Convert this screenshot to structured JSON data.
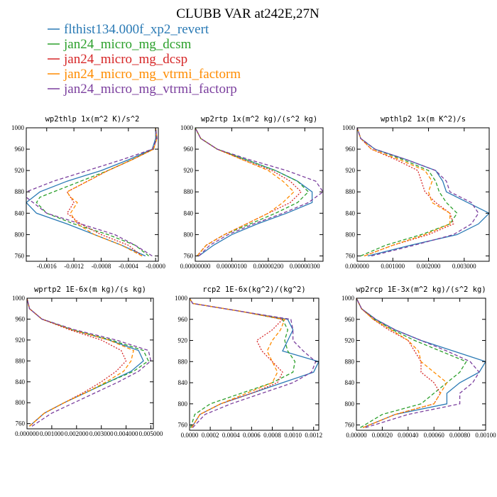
{
  "figure": {
    "title": "CLUBB VAR at242E,27N",
    "legend": [
      {
        "label": "flthist134.000f_xp2_revert",
        "color": "#2a7ab5"
      },
      {
        "label": "jan24_micro_mg_dcsm",
        "color": "#2ca02c"
      },
      {
        "label": "jan24_micro_mg_dcsp",
        "color": "#d62728"
      },
      {
        "label": "jan24_micro_mg_vtrmi_factorm",
        "color": "#ff8c00"
      },
      {
        "label": "jan24_micro_mg_vtrmi_factorp",
        "color": "#7b3f9e"
      }
    ]
  },
  "chart_data": [
    {
      "type": "line",
      "title": "wp2thlp  1x(m^2 K)/s^2",
      "xlim": [
        -0.0019,
        4e-05
      ],
      "ylim": [
        1000,
        750
      ],
      "xticks": [
        -0.0016,
        -0.0012,
        -0.0008,
        -0.0004,
        0.0
      ],
      "xtick_labels": [
        "-0.0016",
        "-0.0012",
        "-0.0008",
        "-0.0004",
        "-0.0000"
      ],
      "yticks": [
        760,
        800,
        840,
        880,
        920,
        960,
        1000
      ],
      "ytick_labels": [
        "760",
        "800",
        "840",
        "880",
        "920",
        "960",
        "1000"
      ],
      "y": [
        760,
        780,
        800,
        820,
        840,
        860,
        870,
        880,
        900,
        920,
        940,
        960,
        980,
        1000
      ],
      "series": [
        {
          "name": "flthist134.000f_xp2_revert",
          "color": "#2a7ab5",
          "dash": "solid",
          "values": [
            -0.00015,
            -0.0005,
            -0.0009,
            -0.0013,
            -0.00175,
            -0.0019,
            -0.0018,
            -0.0017,
            -0.0013,
            -0.0008,
            -0.0004,
            -5e-05,
            0.0,
            0.0
          ]
        },
        {
          "name": "jan24_micro_mg_dcsm",
          "color": "#2ca02c",
          "dash": "dash",
          "values": [
            -0.0001,
            -0.0003,
            -0.0007,
            -0.0012,
            -0.0016,
            -0.00175,
            -0.0017,
            -0.0015,
            -0.0011,
            -0.0007,
            -0.00035,
            -3e-05,
            1e-05,
            0.0
          ]
        },
        {
          "name": "jan24_micro_mg_dcsp",
          "color": "#d62728",
          "dash": "dot",
          "values": [
            -0.0002,
            -0.0004,
            -0.0008,
            -0.0011,
            -0.0013,
            -0.0012,
            -0.00125,
            -0.0013,
            -0.001,
            -0.0007,
            -0.00035,
            -3e-05,
            1e-05,
            0.0
          ]
        },
        {
          "name": "jan24_micro_mg_vtrmi_factorm",
          "color": "#ff8c00",
          "dash": "dash",
          "values": [
            -0.0002,
            -0.0005,
            -0.0009,
            -0.00115,
            -0.00125,
            -0.00115,
            -0.00125,
            -0.0013,
            -0.001,
            -0.0007,
            -0.00035,
            -3e-05,
            2e-05,
            0.0
          ]
        },
        {
          "name": "jan24_micro_mg_vtrmi_factorp",
          "color": "#7b3f9e",
          "dash": "dash",
          "values": [
            -5e-05,
            -0.0003,
            -0.0006,
            -0.0011,
            -0.0016,
            -0.0018,
            -0.0019,
            -0.0019,
            -0.0015,
            -0.001,
            -0.0005,
            -5e-05,
            2e-05,
            0.0
          ]
        }
      ]
    },
    {
      "type": "line",
      "title": "wp2rtp  1x(m^2 kg)/(s^2 kg)",
      "xlim": [
        0.0,
        3.5e-06
      ],
      "ylim": [
        1000,
        750
      ],
      "xticks": [
        0.0,
        1e-06,
        2e-06,
        3e-06
      ],
      "xtick_labels": [
        "0.00000000",
        "0.00000100",
        "0.00000200",
        "0.00000300"
      ],
      "yticks": [
        760,
        800,
        840,
        880,
        920,
        960,
        1000
      ],
      "ytick_labels": [
        "760",
        "800",
        "840",
        "880",
        "920",
        "960",
        "1000"
      ],
      "y": [
        760,
        780,
        800,
        820,
        840,
        860,
        880,
        900,
        920,
        940,
        960,
        980,
        1000
      ],
      "series": [
        {
          "name": "flthist134.000f_xp2_revert",
          "color": "#2a7ab5",
          "dash": "solid",
          "values": [
            1e-07,
            5e-07,
            1e-06,
            1.7e-06,
            2.5e-06,
            3.2e-06,
            3.2e-06,
            2.8e-06,
            2.2e-06,
            1.4e-06,
            6e-07,
            1.5e-07,
            0.0
          ]
        },
        {
          "name": "jan24_micro_mg_dcsm",
          "color": "#2ca02c",
          "dash": "dash",
          "values": [
            5e-08,
            3e-07,
            8e-07,
            1.5e-06,
            2.2e-06,
            2.8e-06,
            3.1e-06,
            2.8e-06,
            2.2e-06,
            1.4e-06,
            6e-07,
            1.5e-07,
            0.0
          ]
        },
        {
          "name": "jan24_micro_mg_dcsp",
          "color": "#d62728",
          "dash": "dot",
          "values": [
            5e-08,
            3e-07,
            8e-07,
            1.4e-06,
            2e-06,
            2.6e-06,
            2.9e-06,
            2.6e-06,
            2.1e-06,
            1.3e-06,
            6e-07,
            1.5e-07,
            0.0
          ]
        },
        {
          "name": "jan24_micro_mg_vtrmi_factorm",
          "color": "#ff8c00",
          "dash": "dash",
          "values": [
            5e-08,
            3e-07,
            8e-07,
            1.4e-06,
            2e-06,
            2.4e-06,
            2.7e-06,
            2.4e-06,
            2e-06,
            1.3e-06,
            6e-07,
            1.5e-07,
            0.0
          ]
        },
        {
          "name": "jan24_micro_mg_vtrmi_factorp",
          "color": "#7b3f9e",
          "dash": "dash",
          "values": [
            1e-07,
            4e-07,
            9e-07,
            1.6e-06,
            2.4e-06,
            3.1e-06,
            3.5e-06,
            3.3e-06,
            2.5e-06,
            1.5e-06,
            6e-07,
            1.5e-07,
            0.0
          ]
        }
      ]
    },
    {
      "type": "line",
      "title": "wpthlp2  1x(m K^2)/s",
      "xlim": [
        0.0,
        0.0037
      ],
      "ylim": [
        1000,
        750
      ],
      "xticks": [
        0.0,
        0.001,
        0.002,
        0.003
      ],
      "xtick_labels": [
        "0.000000",
        "0.001000",
        "0.002000",
        "0.003000"
      ],
      "yticks": [
        760,
        800,
        840,
        880,
        920,
        960,
        1000
      ],
      "ytick_labels": [
        "760",
        "800",
        "840",
        "880",
        "920",
        "960",
        "1000"
      ],
      "y": [
        760,
        780,
        800,
        820,
        840,
        860,
        880,
        900,
        920,
        940,
        960,
        980,
        1000
      ],
      "series": [
        {
          "name": "flthist134.000f_xp2_revert",
          "color": "#2a7ab5",
          "dash": "solid",
          "values": [
            0.0003,
            0.0015,
            0.0028,
            0.0034,
            0.0037,
            0.0031,
            0.0025,
            0.0024,
            0.0022,
            0.0014,
            0.0005,
            0.0001,
            0.0
          ]
        },
        {
          "name": "jan24_micro_mg_dcsm",
          "color": "#2ca02c",
          "dash": "dash",
          "values": [
            0.0001,
            0.0008,
            0.0018,
            0.0026,
            0.0028,
            0.0025,
            0.0023,
            0.0022,
            0.002,
            0.0013,
            0.0005,
            0.0001,
            0.0
          ]
        },
        {
          "name": "jan24_micro_mg_dcsp",
          "color": "#d62728",
          "dash": "dot",
          "values": [
            0.0002,
            0.001,
            0.002,
            0.0027,
            0.0026,
            0.0022,
            0.0019,
            0.0018,
            0.0017,
            0.0011,
            0.0004,
            0.0001,
            0.0
          ]
        },
        {
          "name": "jan24_micro_mg_vtrmi_factorm",
          "color": "#ff8c00",
          "dash": "dash",
          "values": [
            0.0002,
            0.001,
            0.0019,
            0.0026,
            0.0026,
            0.0021,
            0.002,
            0.0021,
            0.0019,
            0.0012,
            0.0004,
            0.0001,
            0.0
          ]
        },
        {
          "name": "jan24_micro_mg_vtrmi_factorp",
          "color": "#7b3f9e",
          "dash": "dash",
          "values": [
            0.0004,
            0.0016,
            0.0027,
            0.0032,
            0.0034,
            0.0032,
            0.0026,
            0.0025,
            0.0022,
            0.0014,
            0.0005,
            0.0001,
            0.0
          ]
        }
      ]
    },
    {
      "type": "line",
      "title": "wprtp2  1E-6x(m kg)/(s kg)",
      "xlim": [
        0.0,
        0.0051
      ],
      "ylim": [
        1000,
        750
      ],
      "xticks": [
        0.0,
        0.001,
        0.002,
        0.003,
        0.004,
        0.005
      ],
      "xtick_labels": [
        "0.000000",
        "0.001000",
        "0.002000",
        "0.003000",
        "0.004000",
        "0.005000"
      ],
      "yticks": [
        760,
        800,
        840,
        880,
        920,
        960,
        1000
      ],
      "ytick_labels": [
        "760",
        "800",
        "840",
        "880",
        "920",
        "960",
        "1000"
      ],
      "y": [
        755,
        780,
        800,
        820,
        840,
        860,
        880,
        900,
        920,
        940,
        960,
        980,
        1000
      ],
      "series": [
        {
          "name": "flthist134.000f_xp2_revert",
          "color": "#2a7ab5",
          "dash": "solid",
          "values": [
            0.0001,
            0.0007,
            0.0015,
            0.0024,
            0.0033,
            0.0042,
            0.0047,
            0.0045,
            0.0033,
            0.0018,
            0.0006,
            0.0001,
            0.0
          ]
        },
        {
          "name": "jan24_micro_mg_dcsm",
          "color": "#2ca02c",
          "dash": "dash",
          "values": [
            0.0001,
            0.0007,
            0.0015,
            0.0024,
            0.0033,
            0.0043,
            0.0049,
            0.0047,
            0.0034,
            0.0018,
            0.0006,
            0.0001,
            0.0
          ]
        },
        {
          "name": "jan24_micro_mg_dcsp",
          "color": "#d62728",
          "dash": "dot",
          "values": [
            0.0001,
            0.0007,
            0.0015,
            0.0023,
            0.003,
            0.0036,
            0.004,
            0.0038,
            0.003,
            0.0017,
            0.0006,
            0.0001,
            0.0
          ]
        },
        {
          "name": "jan24_micro_mg_vtrmi_factorm",
          "color": "#ff8c00",
          "dash": "dash",
          "values": [
            0.0001,
            0.0007,
            0.0015,
            0.0024,
            0.0032,
            0.0039,
            0.0042,
            0.0043,
            0.0033,
            0.0018,
            0.0006,
            0.0001,
            0.0
          ]
        },
        {
          "name": "jan24_micro_mg_vtrmi_factorp",
          "color": "#7b3f9e",
          "dash": "dash",
          "values": [
            0.0002,
            0.001,
            0.0019,
            0.0028,
            0.0037,
            0.0045,
            0.005,
            0.0049,
            0.0036,
            0.0019,
            0.0006,
            0.0001,
            0.0
          ]
        }
      ]
    },
    {
      "type": "line",
      "title": "rcp2  1E-6x(kg^2)/(kg^2)",
      "xlim": [
        0.0,
        0.00125
      ],
      "ylim": [
        1000,
        750
      ],
      "xticks": [
        0.0,
        0.0002,
        0.0004,
        0.0006,
        0.0008,
        0.001,
        0.0012
      ],
      "xtick_labels": [
        "0.0000",
        "0.0002",
        "0.0004",
        "0.0006",
        "0.0008",
        "0.0010",
        "0.0012"
      ],
      "yticks": [
        760,
        800,
        840,
        880,
        920,
        960,
        1000
      ],
      "ytick_labels": [
        "760",
        "800",
        "840",
        "880",
        "920",
        "960",
        "1000"
      ],
      "y": [
        755,
        780,
        800,
        820,
        840,
        860,
        880,
        900,
        920,
        940,
        960,
        975,
        990,
        1000
      ],
      "series": [
        {
          "name": "flthist134.000f_xp2_revert",
          "color": "#2a7ab5",
          "dash": "solid",
          "values": [
            2e-05,
            0.0001,
            0.0003,
            0.0006,
            0.0009,
            0.0012,
            0.00125,
            0.0009,
            0.00095,
            0.001,
            0.00095,
            0.0005,
            3e-05,
            0.0
          ]
        },
        {
          "name": "jan24_micro_mg_dcsm",
          "color": "#2ca02c",
          "dash": "dash",
          "values": [
            1e-05,
            5e-05,
            0.0002,
            0.0005,
            0.0008,
            0.001,
            0.00102,
            0.00095,
            0.00092,
            0.00095,
            0.0009,
            0.0005,
            3e-05,
            0.0
          ]
        },
        {
          "name": "jan24_micro_mg_dcsp",
          "color": "#d62728",
          "dash": "dot",
          "values": [
            2e-05,
            0.0001,
            0.0003,
            0.0006,
            0.00085,
            0.0009,
            0.0008,
            0.0007,
            0.00065,
            0.0008,
            0.0009,
            0.0005,
            3e-05,
            0.0
          ]
        },
        {
          "name": "jan24_micro_mg_vtrmi_factorm",
          "color": "#ff8c00",
          "dash": "dash",
          "values": [
            2e-05,
            0.0001,
            0.0003,
            0.00055,
            0.0008,
            0.00085,
            0.0008,
            0.00075,
            0.0008,
            0.00088,
            0.00092,
            0.0005,
            3e-05,
            0.0
          ]
        },
        {
          "name": "jan24_micro_mg_vtrmi_factorp",
          "color": "#7b3f9e",
          "dash": "dash",
          "values": [
            3e-05,
            0.00015,
            0.0004,
            0.0007,
            0.001,
            0.00118,
            0.00122,
            0.0011,
            0.001,
            0.001,
            0.00098,
            0.0005,
            3e-05,
            0.0
          ]
        }
      ]
    },
    {
      "type": "line",
      "title": "wp2rcp  1E-3x(m^2 kg)/(s^2 kg)",
      "xlim": [
        0.0,
        0.001
      ],
      "ylim": [
        1000,
        750
      ],
      "xticks": [
        0.0,
        0.0002,
        0.0004,
        0.0006,
        0.0008,
        0.001
      ],
      "xtick_labels": [
        "0.00000",
        "0.00020",
        "0.00040",
        "0.00060",
        "0.00080",
        "0.00100"
      ],
      "yticks": [
        760,
        800,
        840,
        880,
        920,
        960,
        1000
      ],
      "ytick_labels": [
        "760",
        "800",
        "840",
        "880",
        "920",
        "960",
        "1000"
      ],
      "y": [
        755,
        780,
        800,
        820,
        840,
        860,
        880,
        900,
        920,
        940,
        960,
        980,
        1000
      ],
      "series": [
        {
          "name": "flthist134.000f_xp2_revert",
          "color": "#2a7ab5",
          "dash": "solid",
          "values": [
            5e-05,
            0.0003,
            0.0007,
            0.0007,
            0.0008,
            0.00095,
            0.001,
            0.00075,
            0.0005,
            0.0003,
            0.00015,
            4e-05,
            0.0
          ]
        },
        {
          "name": "jan24_micro_mg_dcsm",
          "color": "#2ca02c",
          "dash": "dash",
          "values": [
            3e-05,
            0.0002,
            0.0005,
            0.0006,
            0.0007,
            0.0008,
            0.00085,
            0.00065,
            0.00045,
            0.00028,
            0.00014,
            4e-05,
            0.0
          ]
        },
        {
          "name": "jan24_micro_mg_dcsp",
          "color": "#d62728",
          "dash": "dot",
          "values": [
            5e-05,
            0.0003,
            0.0006,
            0.00065,
            0.0006,
            0.0005,
            0.0005,
            0.00045,
            0.0004,
            0.00025,
            0.00013,
            4e-05,
            0.0
          ]
        },
        {
          "name": "jan24_micro_mg_vtrmi_factorm",
          "color": "#ff8c00",
          "dash": "dash",
          "values": [
            5e-05,
            0.0003,
            0.0006,
            0.00065,
            0.0007,
            0.0006,
            0.0005,
            0.00048,
            0.0004,
            0.00027,
            0.00013,
            4e-05,
            0.0
          ]
        },
        {
          "name": "jan24_micro_mg_vtrmi_factorp",
          "color": "#7b3f9e",
          "dash": "dash",
          "values": [
            7e-05,
            0.0004,
            0.0008,
            0.0008,
            0.0009,
            0.00095,
            0.00088,
            0.0007,
            0.0005,
            0.0003,
            0.00015,
            4e-05,
            0.0
          ]
        }
      ]
    }
  ]
}
